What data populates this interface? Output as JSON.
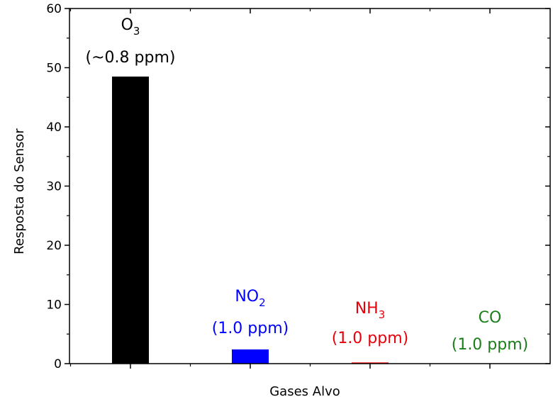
{
  "chart_data": {
    "type": "bar",
    "title": "",
    "xlabel": "Gases Alvo",
    "ylabel": "Resposta do Sensor",
    "ylim": [
      0,
      60
    ],
    "yticks": [
      0,
      10,
      20,
      30,
      40,
      50,
      60
    ],
    "grid": false,
    "categories": [
      "O3",
      "NO2",
      "NH3",
      "CO"
    ],
    "values": [
      48.5,
      2.4,
      0.2,
      0
    ],
    "colors": [
      "#000000",
      "#0000ff",
      "#ff0000",
      "#008000"
    ],
    "annotations": [
      {
        "gas": "O",
        "sub": "3",
        "conc": "(~0.8 ppm)",
        "color": "#000000"
      },
      {
        "gas": "NO",
        "sub": "2",
        "conc": "(1.0 ppm)",
        "color": "#0000ff"
      },
      {
        "gas": "NH",
        "sub": "3",
        "conc": "(1.0 ppm)",
        "color": "#e8000b"
      },
      {
        "gas": "CO",
        "sub": "",
        "conc": "(1.0 ppm)",
        "color": "#1a7f1a"
      }
    ]
  }
}
